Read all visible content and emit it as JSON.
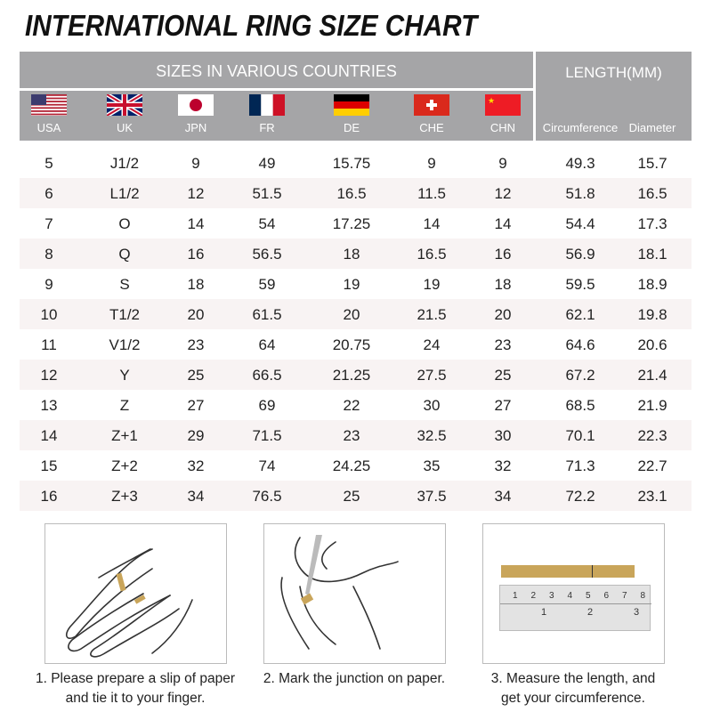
{
  "title": "INTERNATIONAL RING SIZE CHART",
  "header": {
    "sizes_label": "SIZES IN VARIOUS COUNTRIES",
    "length_label": "LENGTH(MM)"
  },
  "columns": [
    {
      "label": "USA",
      "flag": "usa-flag"
    },
    {
      "label": "UK",
      "flag": "uk-flag"
    },
    {
      "label": "JPN",
      "flag": "japan-flag"
    },
    {
      "label": "FR",
      "flag": "france-flag"
    },
    {
      "label": "DE",
      "flag": "germany-flag"
    },
    {
      "label": "CHE",
      "flag": "switzerland-flag"
    },
    {
      "label": "CHN",
      "flag": "china-flag"
    },
    {
      "label": "Circumference"
    },
    {
      "label": "Diameter"
    }
  ],
  "rows": [
    [
      "5",
      "J1/2",
      "9",
      "49",
      "15.75",
      "9",
      "9",
      "49.3",
      "15.7"
    ],
    [
      "6",
      "L1/2",
      "12",
      "51.5",
      "16.5",
      "11.5",
      "12",
      "51.8",
      "16.5"
    ],
    [
      "7",
      "O",
      "14",
      "54",
      "17.25",
      "14",
      "14",
      "54.4",
      "17.3"
    ],
    [
      "8",
      "Q",
      "16",
      "56.5",
      "18",
      "16.5",
      "16",
      "56.9",
      "18.1"
    ],
    [
      "9",
      "S",
      "18",
      "59",
      "19",
      "19",
      "18",
      "59.5",
      "18.9"
    ],
    [
      "10",
      "T1/2",
      "20",
      "61.5",
      "20",
      "21.5",
      "20",
      "62.1",
      "19.8"
    ],
    [
      "11",
      "V1/2",
      "23",
      "64",
      "20.75",
      "24",
      "23",
      "64.6",
      "20.6"
    ],
    [
      "12",
      "Y",
      "25",
      "66.5",
      "21.25",
      "27.5",
      "25",
      "67.2",
      "21.4"
    ],
    [
      "13",
      "Z",
      "27",
      "69",
      "22",
      "30",
      "27",
      "68.5",
      "21.9"
    ],
    [
      "14",
      "Z+1",
      "29",
      "71.5",
      "23",
      "32.5",
      "30",
      "70.1",
      "22.3"
    ],
    [
      "15",
      "Z+2",
      "32",
      "74",
      "24.25",
      "35",
      "32",
      "71.3",
      "22.7"
    ],
    [
      "16",
      "Z+3",
      "34",
      "76.5",
      "25",
      "37.5",
      "34",
      "72.2",
      "23.1"
    ]
  ],
  "steps": [
    {
      "line1": "1. Please prepare a slip of paper",
      "line2": "and tie it to your finger."
    },
    {
      "line1": "2. Mark the junction on paper.",
      "line2": ""
    },
    {
      "line1": "3. Measure the length, and",
      "line2": "get your circumference."
    }
  ],
  "ruler_labels": [
    "1",
    "2",
    "3",
    "4",
    "5",
    "6",
    "7",
    "8"
  ],
  "ruler_inch_labels": [
    "1",
    "2",
    "3"
  ],
  "colors": {
    "header_bg": "#a5a5a7",
    "alt_row": "#f8f3f3",
    "paper_strip": "#c9a55a"
  }
}
